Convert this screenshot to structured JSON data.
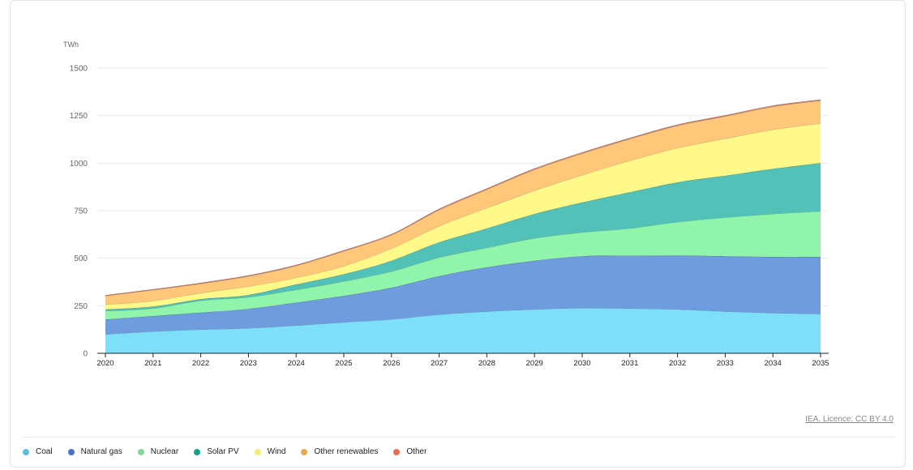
{
  "chart_data": {
    "type": "area",
    "stacked": true,
    "ylabel": "TWh",
    "ylim": [
      0,
      1500
    ],
    "yticks": [
      0,
      250,
      500,
      750,
      1000,
      1250,
      1500
    ],
    "grid": true,
    "legend_position": "bottom-left",
    "x": [
      2020,
      2021,
      2022,
      2023,
      2024,
      2025,
      2026,
      2027,
      2028,
      2029,
      2030,
      2031,
      2032,
      2033,
      2034,
      2035
    ],
    "series": [
      {
        "name": "Coal",
        "fill": "#7ddff9",
        "legend_color": "#5bc0de",
        "values": [
          100,
          115,
          125,
          132,
          146,
          163,
          179,
          204,
          220,
          231,
          238,
          236,
          231,
          220,
          212,
          207
        ]
      },
      {
        "name": "Natural gas",
        "fill": "#6f9bdf",
        "legend_color": "#4a72c4",
        "values": [
          78,
          81,
          89,
          102,
          121,
          139,
          166,
          202,
          232,
          256,
          273,
          277,
          283,
          291,
          295,
          300
        ]
      },
      {
        "name": "Nuclear",
        "fill": "#90f5ab",
        "legend_color": "#7fd99a",
        "values": [
          44,
          40,
          63,
          61,
          67,
          76,
          85,
          98,
          103,
          118,
          125,
          144,
          176,
          203,
          226,
          240
        ]
      },
      {
        "name": "Solar PV",
        "fill": "#52c2b8",
        "legend_color": "#1a9e8f",
        "values": [
          9,
          10,
          8,
          12,
          28,
          38,
          57,
          80,
          102,
          128,
          157,
          190,
          209,
          220,
          237,
          254
        ]
      },
      {
        "name": "Wind",
        "fill": "#fff98a",
        "legend_color": "#f5ee6e",
        "values": [
          25,
          30,
          32,
          45,
          35,
          43,
          64,
          85,
          107,
          123,
          144,
          166,
          181,
          195,
          206,
          208
        ]
      },
      {
        "name": "Other renewables",
        "fill": "#ffc77a",
        "legend_color": "#e8a94e",
        "values": [
          46,
          57,
          49,
          53,
          63,
          78,
          71,
          85,
          97,
          110,
          114,
          114,
          117,
          117,
          121,
          120
        ]
      },
      {
        "name": "Other",
        "fill": "#e0836a",
        "legend_color": "#e07050",
        "values": [
          3,
          3,
          4,
          4,
          4,
          4,
          4,
          5,
          5,
          5,
          5,
          5,
          5,
          5,
          5,
          5
        ]
      }
    ]
  },
  "credit": "IEA. Licence: CC BY 4.0"
}
